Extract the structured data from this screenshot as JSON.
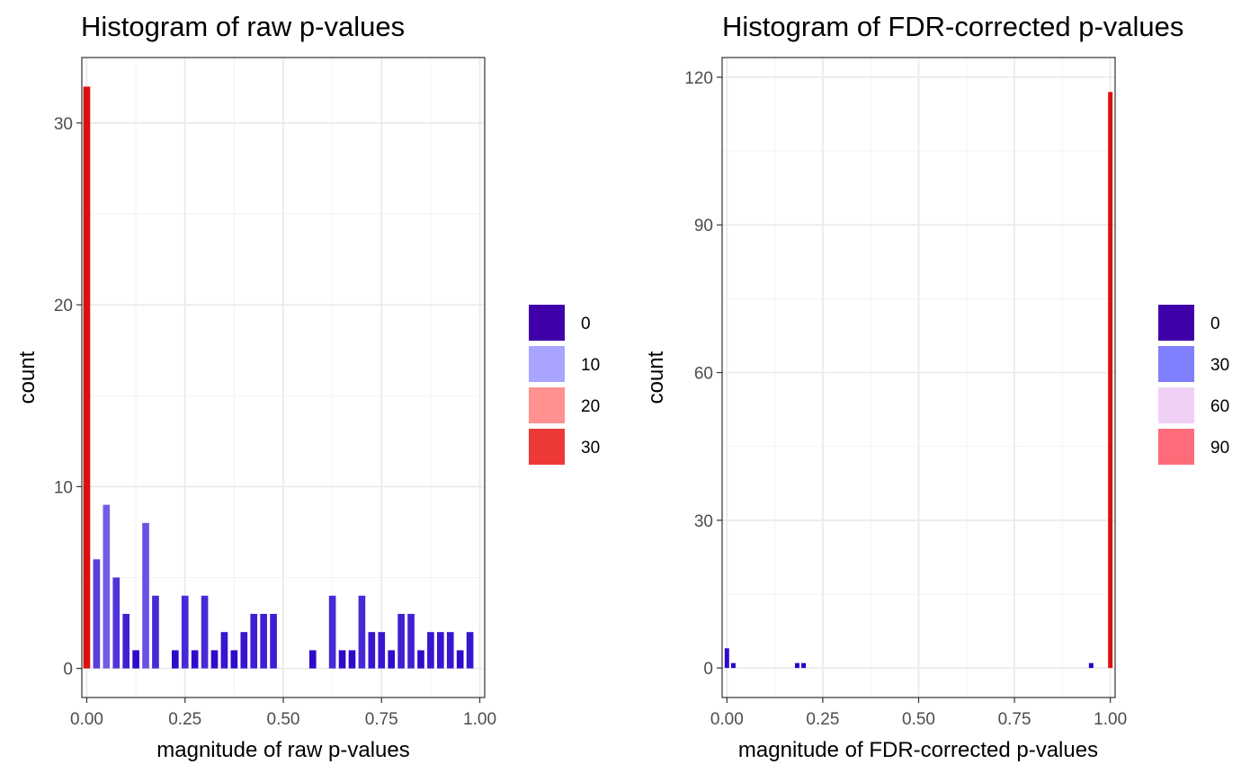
{
  "chart_data": [
    {
      "type": "bar",
      "title": "Histogram of raw p-values",
      "xlabel": "magnitude of raw p-values",
      "ylabel": "count",
      "xlim": [
        -0.0125,
        1.0125
      ],
      "ylim": [
        -1.6,
        33.6
      ],
      "x_ticks": [
        0,
        0.25,
        0.5,
        0.75,
        1
      ],
      "x_tick_labels": [
        "0.00",
        "0.25",
        "0.50",
        "0.75",
        "1.00"
      ],
      "y_ticks": [
        0,
        10,
        20,
        30
      ],
      "y_tick_labels": [
        "0",
        "10",
        "20",
        "30"
      ],
      "bin_width": 0.025,
      "x": [
        0,
        0.025,
        0.05,
        0.075,
        0.1,
        0.125,
        0.15,
        0.175,
        0.225,
        0.25,
        0.275,
        0.3,
        0.325,
        0.35,
        0.375,
        0.4,
        0.425,
        0.45,
        0.475,
        0.575,
        0.625,
        0.65,
        0.675,
        0.7,
        0.725,
        0.75,
        0.775,
        0.8,
        0.825,
        0.85,
        0.875,
        0.9,
        0.925,
        0.95,
        0.975
      ],
      "values": [
        32,
        6,
        9,
        5,
        3,
        1,
        8,
        4,
        1,
        4,
        1,
        4,
        1,
        2,
        1,
        2,
        3,
        3,
        3,
        1,
        4,
        1,
        1,
        4,
        2,
        2,
        1,
        3,
        3,
        1,
        2,
        2,
        2,
        1,
        2
      ],
      "grid": true,
      "legend": {
        "placement": "right",
        "entries": [
          "0",
          "10",
          "20",
          "30"
        ],
        "colors": [
          "#4000AA",
          "#A8A4FF",
          "#FF9191",
          "#ED3838"
        ]
      },
      "color_scale": {
        "domain": [
          0,
          32
        ],
        "colors": [
          "#2800C8",
          "#A8A4FF",
          "#DB1010"
        ]
      }
    },
    {
      "type": "bar",
      "title": "Histogram of FDR-corrected p-values",
      "xlabel": "magnitude of FDR-corrected p-values",
      "ylabel": "count",
      "xlim": [
        -0.0125,
        1.0125
      ],
      "ylim": [
        -6,
        124
      ],
      "x_ticks": [
        0,
        0.25,
        0.5,
        0.75,
        1
      ],
      "x_tick_labels": [
        "0.00",
        "0.25",
        "0.50",
        "0.75",
        "1.00"
      ],
      "y_ticks": [
        0,
        30,
        60,
        90,
        120
      ],
      "y_tick_labels": [
        "0",
        "30",
        "60",
        "90",
        "120"
      ],
      "bin_width": 0.0167,
      "x": [
        0,
        0.0167,
        0.1833,
        0.2,
        0.95,
        1
      ],
      "values": [
        4,
        1,
        1,
        1,
        1,
        117
      ],
      "grid": true,
      "legend": {
        "placement": "right",
        "entries": [
          "0",
          "30",
          "60",
          "90"
        ],
        "colors": [
          "#4000AA",
          "#8080FF",
          "#F0D0F5",
          "#FF6B78"
        ]
      },
      "color_scale": {
        "domain": [
          0,
          117
        ],
        "colors": [
          "#2800C8",
          "#A8A4FF",
          "#DB1010"
        ]
      }
    }
  ]
}
